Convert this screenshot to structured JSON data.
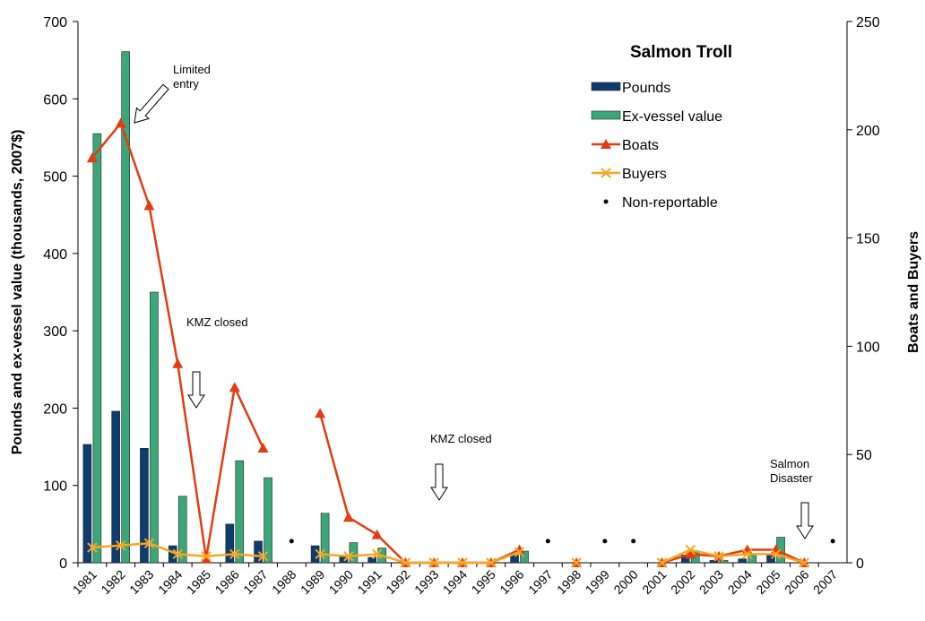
{
  "chart_data": {
    "type": "bar",
    "categories": [
      "1981",
      "1982",
      "1983",
      "1984",
      "1985",
      "1986",
      "1987",
      "1988",
      "1989",
      "1990",
      "1991",
      "1992",
      "1993",
      "1994",
      "1995",
      "1996",
      "1997",
      "1998",
      "1999",
      "2000",
      "2001",
      "2002",
      "2003",
      "2004",
      "2005",
      "2006",
      "2007"
    ],
    "series": [
      {
        "name": "Pounds",
        "kind": "bar",
        "color": "#0f3c6e",
        "values": [
          153,
          196,
          148,
          22,
          0,
          50,
          28,
          null,
          22,
          8,
          7,
          0,
          0,
          0,
          0,
          10,
          null,
          0,
          null,
          null,
          0,
          10,
          3,
          5,
          10,
          0,
          null
        ]
      },
      {
        "name": "Ex-vessel value",
        "kind": "bar",
        "color": "#3ba778",
        "values": [
          555,
          661,
          350,
          86,
          0,
          132,
          110,
          null,
          64,
          26,
          19,
          0,
          0,
          0,
          0,
          15,
          null,
          0,
          null,
          null,
          0,
          14,
          3,
          10,
          33,
          0,
          null
        ]
      },
      {
        "name": "Boats",
        "kind": "line",
        "marker": "triangle",
        "axis": "y2",
        "color": "#e33b12",
        "values": [
          187,
          203,
          165,
          92,
          2,
          81,
          53,
          null,
          69,
          21,
          13,
          0,
          0,
          0,
          0,
          6,
          null,
          0,
          null,
          null,
          0,
          4,
          3,
          6,
          6,
          0,
          null
        ]
      },
      {
        "name": "Buyers",
        "kind": "line",
        "marker": "x",
        "axis": "y2",
        "color": "#f5a623",
        "values": [
          7,
          8,
          9,
          4,
          3,
          4,
          3,
          null,
          4,
          3,
          4,
          0,
          0,
          0,
          0,
          5,
          null,
          0,
          null,
          null,
          0,
          6,
          3,
          4,
          4,
          0,
          null
        ]
      },
      {
        "name": "Non-reportable",
        "kind": "dot",
        "axis": "y2",
        "color": "#000000",
        "values": [
          null,
          null,
          null,
          null,
          null,
          null,
          null,
          10,
          null,
          null,
          null,
          null,
          null,
          null,
          null,
          null,
          10,
          null,
          10,
          10,
          null,
          null,
          null,
          null,
          null,
          null,
          10
        ]
      }
    ],
    "legend_title": "Salmon Troll",
    "ylabel": "Pounds and ex-vessel value (thousands, 2007$)",
    "y2label": "Boats and Buyers",
    "ylim": [
      0,
      700
    ],
    "yticks": [
      0,
      100,
      200,
      300,
      400,
      500,
      600,
      700
    ],
    "y2lim": [
      0,
      250
    ],
    "y2ticks": [
      0,
      50,
      100,
      150,
      200,
      250
    ],
    "annotations": [
      "Limited entry",
      "KMZ closed",
      "KMZ closed",
      "Salmon Disaster"
    ]
  }
}
